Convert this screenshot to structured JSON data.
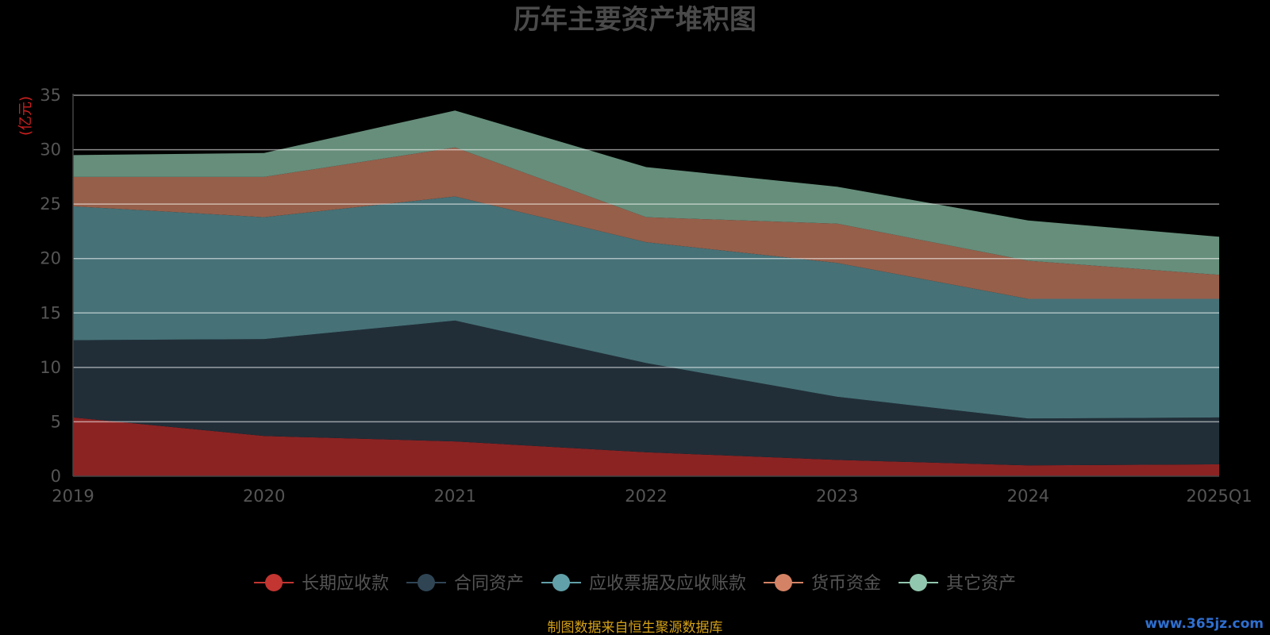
{
  "chart_data": {
    "type": "area",
    "stacked": true,
    "title": "历年主要资产堆积图",
    "ylabel": "(亿元)",
    "categories": [
      "2019",
      "2020",
      "2021",
      "2022",
      "2023",
      "2024",
      "2025Q1"
    ],
    "ylim": [
      0,
      35
    ],
    "yticks": [
      0,
      5,
      10,
      15,
      20,
      25,
      30,
      35
    ],
    "grid": true,
    "legend_position": "bottom",
    "series": [
      {
        "name": "长期应收款",
        "color": "#8b2323",
        "marker_color": "#c23531",
        "values": [
          5.4,
          3.7,
          3.2,
          2.2,
          1.5,
          1.0,
          1.1
        ]
      },
      {
        "name": "合同资产",
        "color": "#212e38",
        "marker_color": "#2f4554",
        "values": [
          7.1,
          8.9,
          11.1,
          8.2,
          5.8,
          4.3,
          4.3
        ]
      },
      {
        "name": "应收票据及应收账款",
        "color": "#467177",
        "marker_color": "#61a0a8",
        "values": [
          12.3,
          11.2,
          11.4,
          11.1,
          12.3,
          11.0,
          10.9
        ]
      },
      {
        "name": "货币资金",
        "color": "#965f4a",
        "marker_color": "#d48265",
        "values": [
          2.7,
          3.7,
          4.5,
          2.3,
          3.6,
          3.5,
          2.2
        ]
      },
      {
        "name": "其它资产",
        "color": "#668e7b",
        "marker_color": "#91c7ae",
        "values": [
          2.0,
          2.2,
          3.4,
          4.6,
          3.4,
          3.7,
          3.5
        ]
      }
    ]
  },
  "footer": {
    "source": "制图数据来自恒生聚源数据库",
    "watermark": "www.365jz.com"
  }
}
